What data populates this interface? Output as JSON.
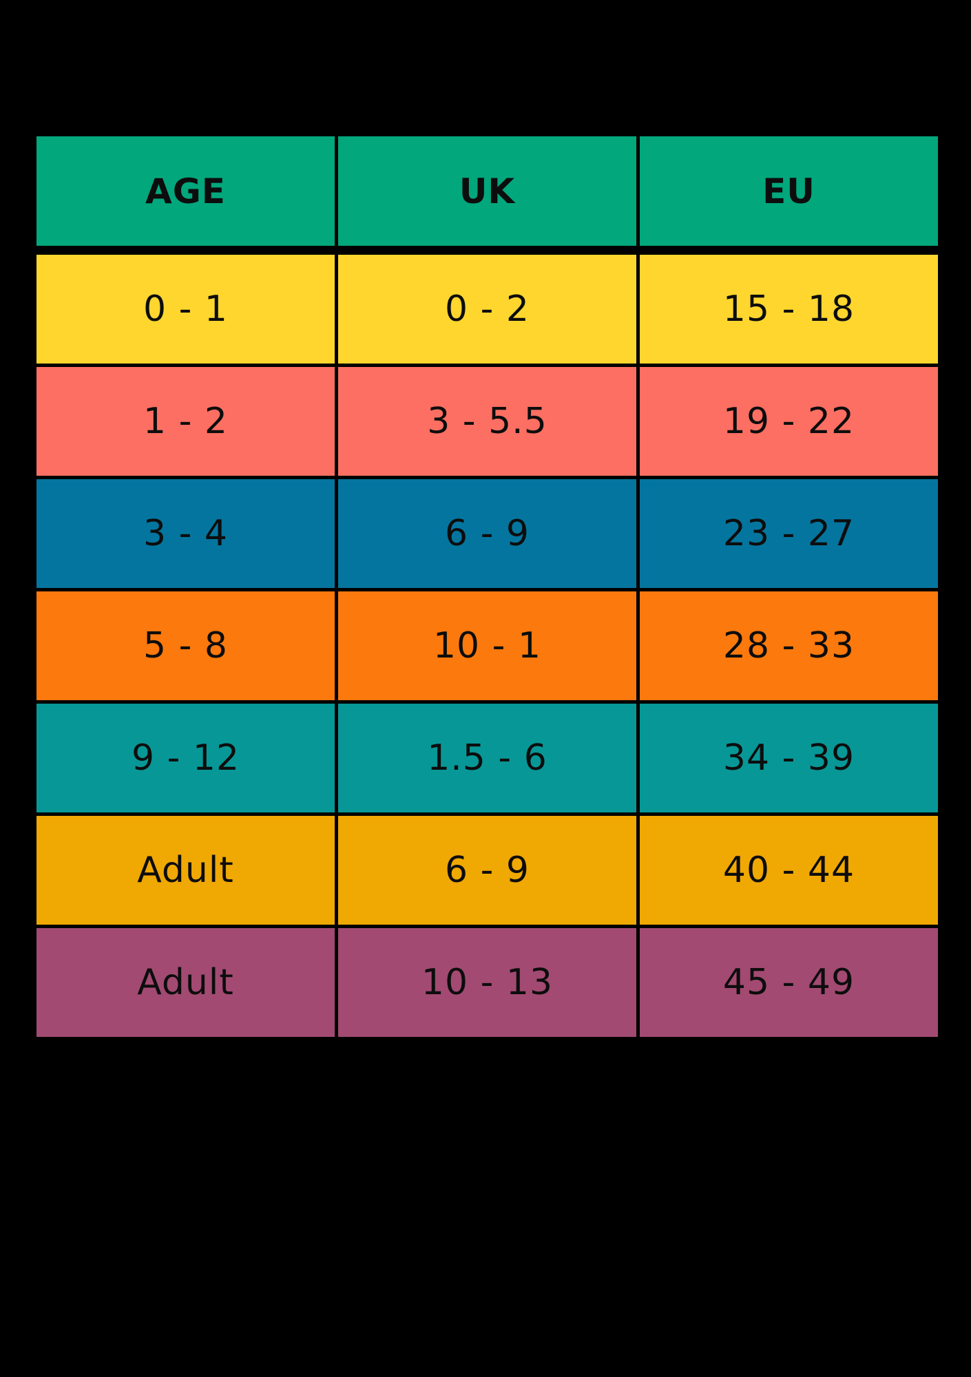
{
  "chart_data": {
    "type": "table",
    "title": "",
    "columns": [
      "AGE",
      "UK",
      "EU"
    ],
    "rows": [
      [
        "0 - 1",
        "0 - 2",
        "15 - 18"
      ],
      [
        "1 - 2",
        "3 - 5.5",
        "19 - 22"
      ],
      [
        "3 - 4",
        "6 - 9",
        "23 - 27"
      ],
      [
        "5 - 8",
        "10 - 1",
        "28 - 33"
      ],
      [
        "9 - 12",
        "1.5 - 6",
        "34 - 39"
      ],
      [
        "Adult",
        "6 - 9",
        "40 - 44"
      ],
      [
        "Adult",
        "10 - 13",
        "45 - 49"
      ]
    ],
    "header_color": "#02A77C",
    "row_colors": [
      "#FFD62E",
      "#FC6F62",
      "#04759F",
      "#FB790D",
      "#089797",
      "#F0A802",
      "#A24A72"
    ],
    "text_color": "#0d0d0d",
    "background_color": "#000000",
    "layout": "3 equal columns, black gridline gaps, thicker gap under header row"
  }
}
